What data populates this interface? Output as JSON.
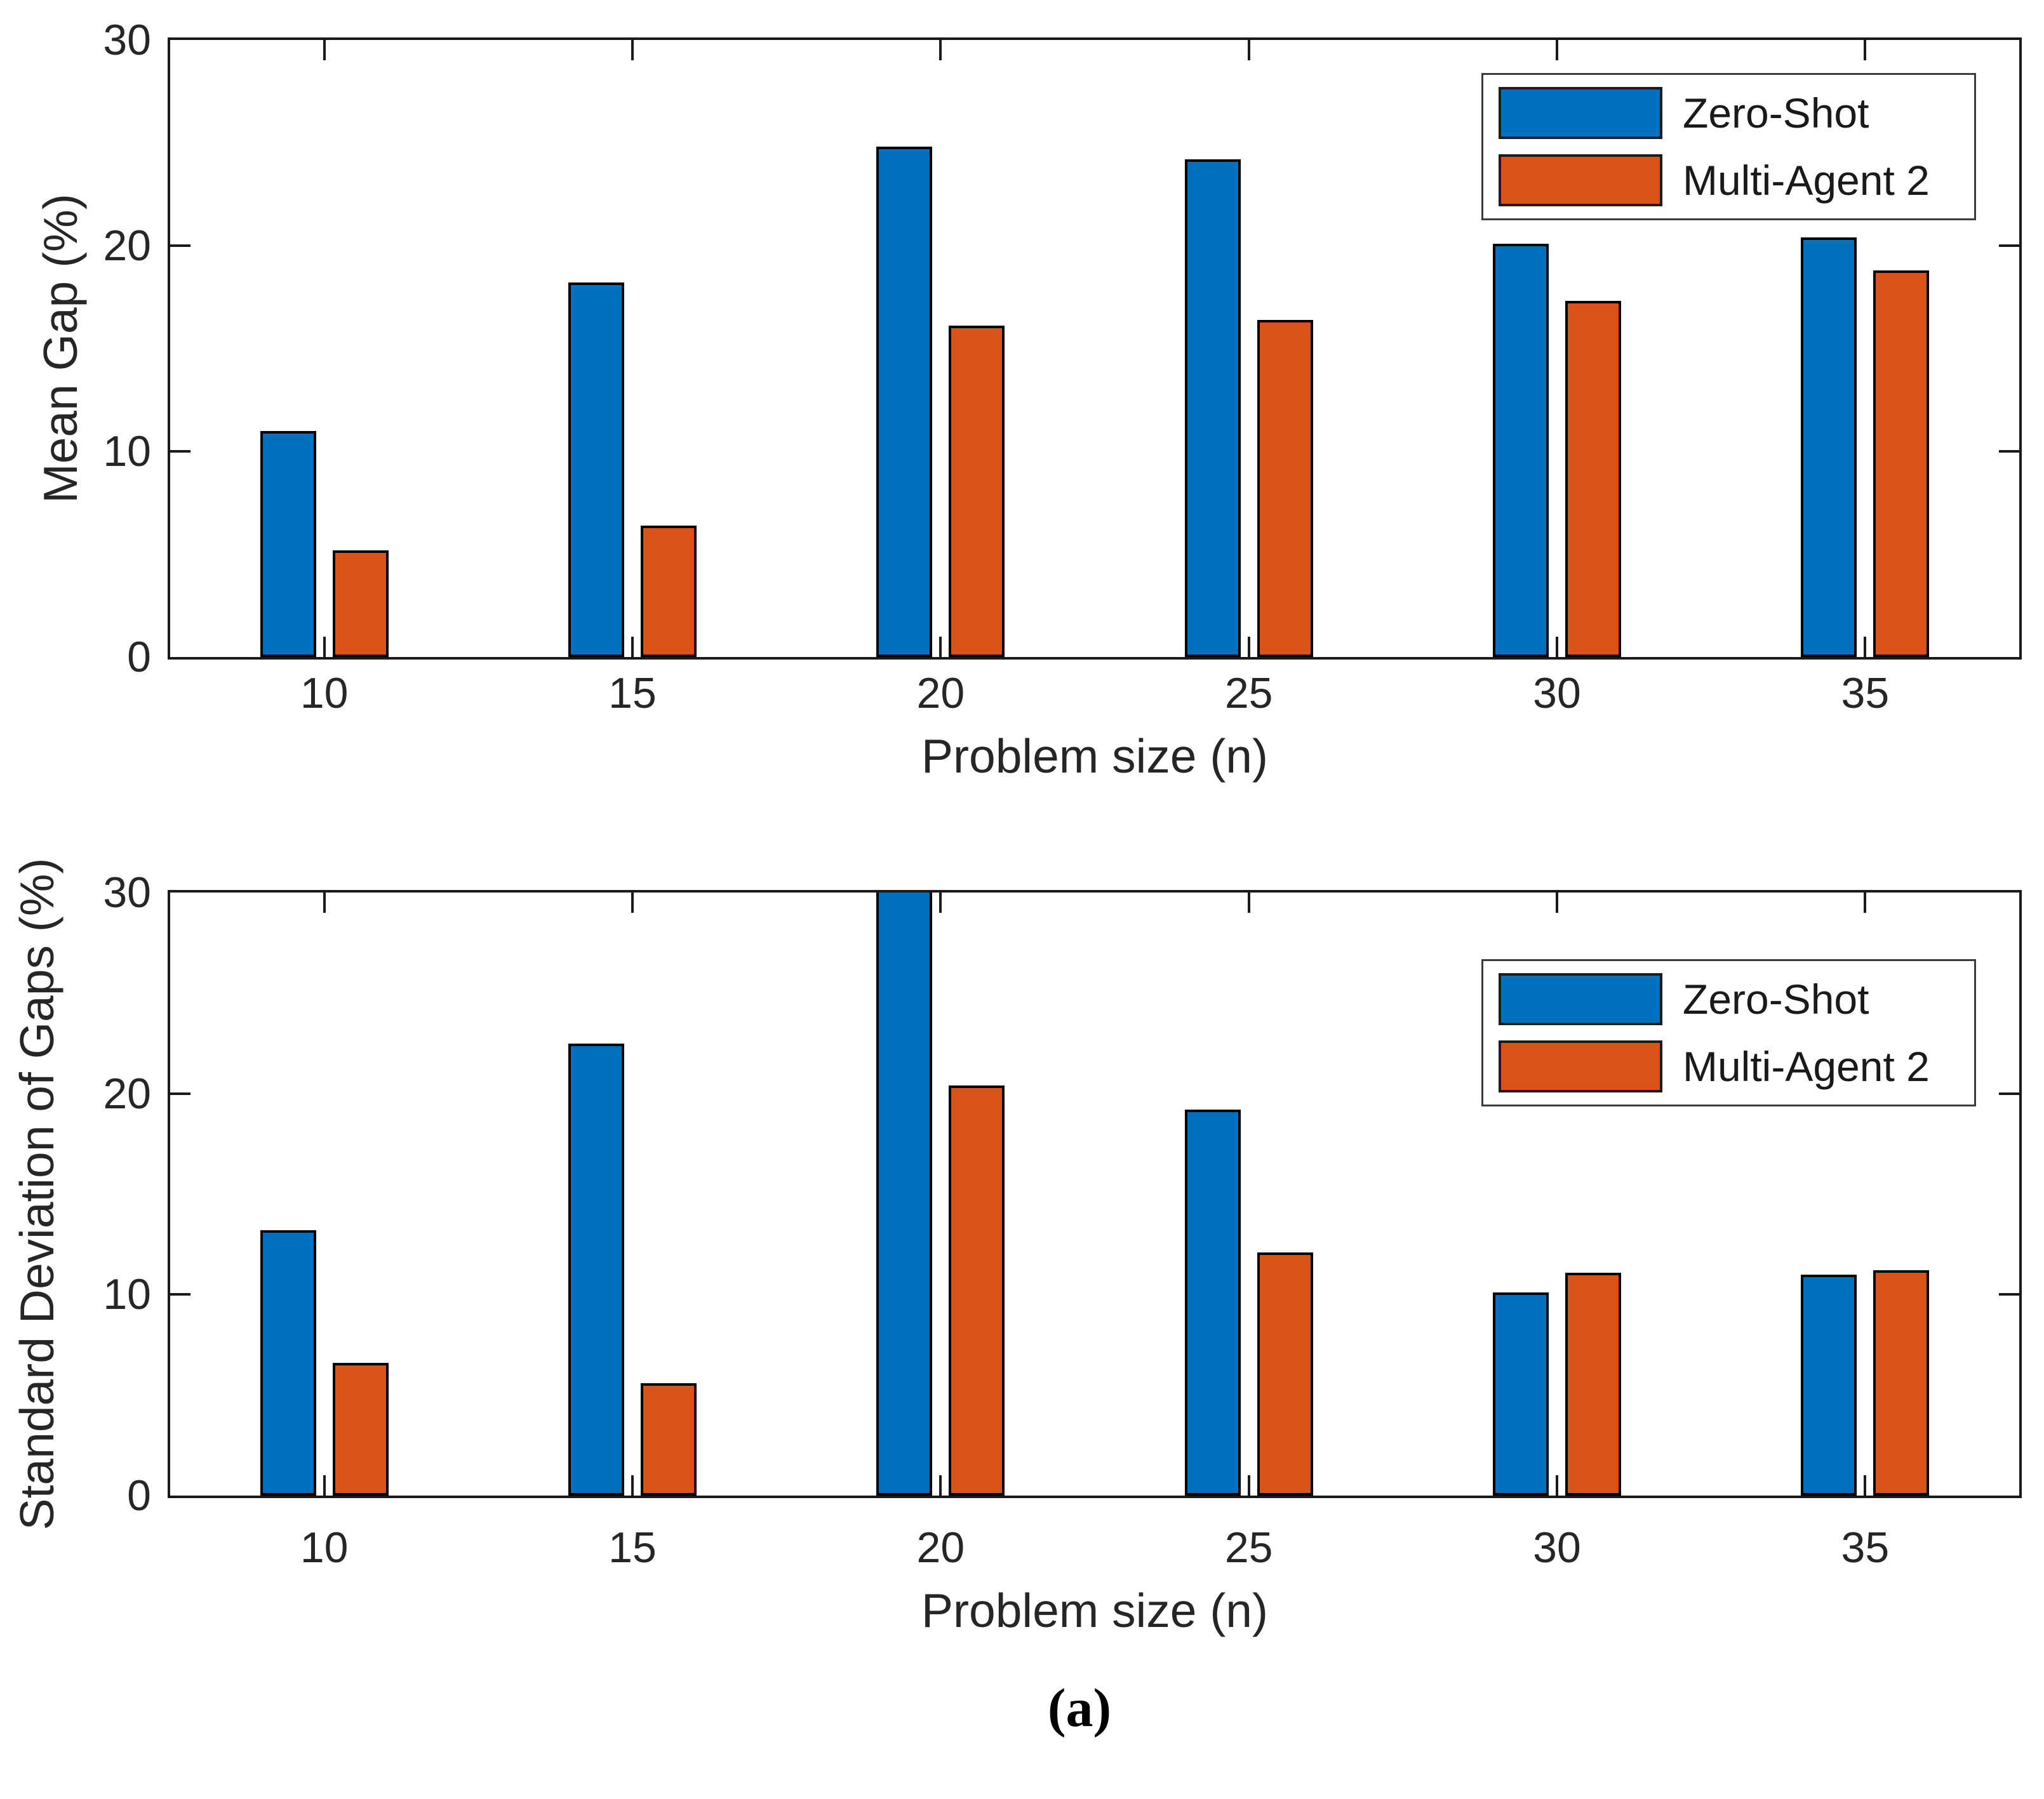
{
  "figure": {
    "caption": "(a)",
    "background": "#ffffff"
  },
  "chart_data": [
    {
      "type": "bar",
      "title": "",
      "xlabel": "Problem size (n)",
      "ylabel": "Mean Gap (%)",
      "categories": [
        "10",
        "15",
        "20",
        "25",
        "30",
        "35"
      ],
      "series": [
        {
          "name": "Zero-Shot",
          "color": "#0072BD",
          "values": [
            11.0,
            18.2,
            24.8,
            24.2,
            20.1,
            20.4
          ]
        },
        {
          "name": "Multi-Agent 2",
          "color": "#D95319",
          "values": [
            5.2,
            6.4,
            16.1,
            16.4,
            17.3,
            18.8
          ]
        }
      ],
      "ylim": [
        0,
        30
      ],
      "yticks": [
        0,
        10,
        20,
        30
      ],
      "grid": false,
      "legend_position": "top-right"
    },
    {
      "type": "bar",
      "title": "",
      "xlabel": "Problem size (n)",
      "ylabel": "Standard Deviation of Gaps (%)",
      "categories": [
        "10",
        "15",
        "20",
        "25",
        "30",
        "35"
      ],
      "series": [
        {
          "name": "Zero-Shot",
          "color": "#0072BD",
          "values": [
            13.2,
            22.5,
            30.0,
            19.2,
            10.1,
            11.0
          ],
          "clipped_at_ymax": [
            false,
            false,
            true,
            false,
            false,
            false
          ]
        },
        {
          "name": "Multi-Agent 2",
          "color": "#D95319",
          "values": [
            6.6,
            5.6,
            20.4,
            12.1,
            11.1,
            11.2
          ]
        }
      ],
      "ylim": [
        0,
        30
      ],
      "yticks": [
        0,
        10,
        20,
        30
      ],
      "grid": false,
      "legend_position": "top-right"
    }
  ],
  "colors": {
    "series_blue": "#0072BD",
    "series_orange": "#D95319",
    "axis": "#1a1a1a",
    "text": "#262626",
    "background": "#ffffff"
  }
}
